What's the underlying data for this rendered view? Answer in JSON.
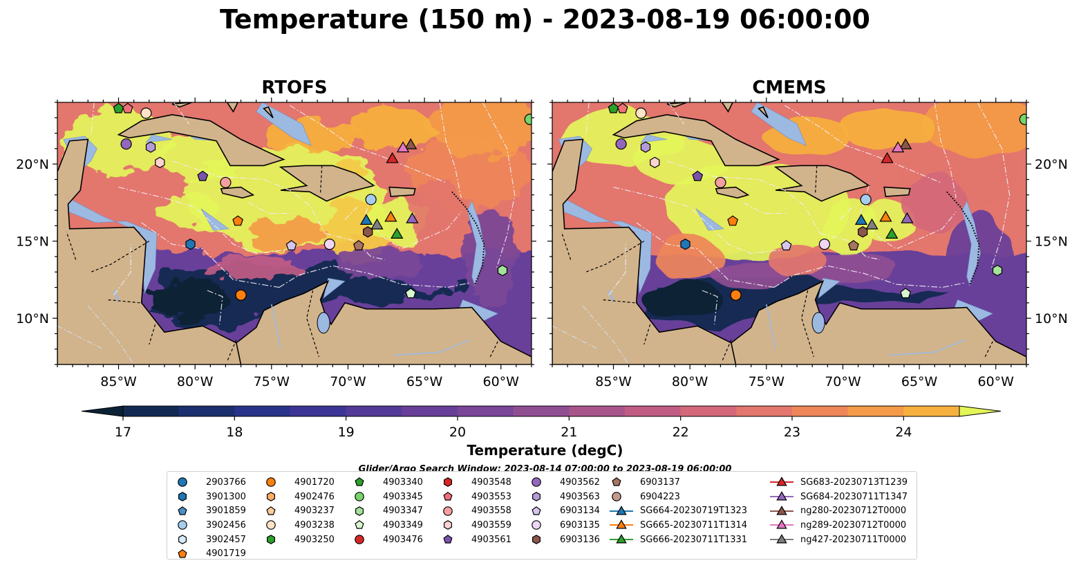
{
  "title": "Temperature (150 m) - 2023-08-19 06:00:00",
  "panels": [
    {
      "title": "RTOFS"
    },
    {
      "title": "CMEMS"
    }
  ],
  "chart_data": {
    "type": "heatmap",
    "x_axis": {
      "range": [
        -89,
        -58
      ],
      "ticks": [
        -85,
        -80,
        -75,
        -70,
        -65,
        -60
      ],
      "tick_labels": [
        "85°W",
        "80°W",
        "75°W",
        "70°W",
        "65°W",
        "60°W"
      ]
    },
    "y_axis": {
      "range": [
        7,
        24
      ],
      "ticks": [
        10,
        15,
        20
      ],
      "tick_labels": [
        "10°N",
        "15°N",
        "20°N"
      ]
    },
    "colorbar": {
      "label": "Temperature (degC)",
      "ticks": [
        17,
        18,
        19,
        20,
        21,
        22,
        23,
        24
      ],
      "levels": [
        17,
        17.5,
        18,
        18.5,
        19,
        19.5,
        20,
        20.5,
        21,
        21.5,
        22,
        22.5,
        23,
        23.5,
        24,
        24.5
      ],
      "colors": [
        "#0b2236",
        "#122a52",
        "#1b2f6e",
        "#29338a",
        "#3d3596",
        "#533a98",
        "#673f99",
        "#7a4697",
        "#904e92",
        "#a8558c",
        "#c15c84",
        "#d4687a",
        "#e3766d",
        "#ee8659",
        "#f49a48",
        "#f6b03e",
        "#f3c948",
        "#e4f55a"
      ],
      "extend": "both"
    },
    "search_window": "Glider/Argo Search Window: 2023-08-14 07:00:00 to 2023-08-19 06:00:00",
    "platforms": [
      {
        "id": "2903766",
        "marker": "circle",
        "color": "#1f77b4",
        "lon": null,
        "lat": null
      },
      {
        "id": "3901300",
        "marker": "hexagon",
        "color": "#1f77b4",
        "lon": -80.3,
        "lat": 14.8
      },
      {
        "id": "3901859",
        "marker": "pentagon",
        "color": "#4a90c6",
        "lon": null,
        "lat": null
      },
      {
        "id": "3902456",
        "marker": "circle",
        "color": "#a6cdee",
        "lon": -68.5,
        "lat": 17.7
      },
      {
        "id": "3902457",
        "marker": "hexagon",
        "color": "#d6ecf7",
        "lon": null,
        "lat": null
      },
      {
        "id": "4901719",
        "marker": "pentagon",
        "color": "#ff7f0e",
        "lon": -77.2,
        "lat": 16.3
      },
      {
        "id": "4901720",
        "marker": "circle",
        "color": "#ff7f0e",
        "lon": -77.0,
        "lat": 11.5
      },
      {
        "id": "4902476",
        "marker": "hexagon",
        "color": "#ffad66",
        "lon": null,
        "lat": null
      },
      {
        "id": "4903237",
        "marker": "pentagon",
        "color": "#ffcc99",
        "lon": null,
        "lat": null
      },
      {
        "id": "4903238",
        "marker": "circle",
        "color": "#ffe3c7",
        "lon": -83.2,
        "lat": 23.3
      },
      {
        "id": "4903250",
        "marker": "hexagon",
        "color": "#2ca02c",
        "lon": null,
        "lat": null
      },
      {
        "id": "4903340",
        "marker": "pentagon",
        "color": "#2ca02c",
        "lon": -85.0,
        "lat": 23.6
      },
      {
        "id": "4903345",
        "marker": "circle",
        "color": "#77d46b",
        "lon": -58.1,
        "lat": 22.9
      },
      {
        "id": "4903347",
        "marker": "hexagon",
        "color": "#a3e39a",
        "lon": -59.9,
        "lat": 13.1
      },
      {
        "id": "4903349",
        "marker": "pentagon",
        "color": "#d8f5cf",
        "lon": -65.9,
        "lat": 11.6
      },
      {
        "id": "4903476",
        "marker": "circle",
        "color": "#d62728",
        "lon": null,
        "lat": null
      },
      {
        "id": "4903548",
        "marker": "hexagon",
        "color": "#d62728",
        "lon": null,
        "lat": null
      },
      {
        "id": "4903553",
        "marker": "pentagon",
        "color": "#f0707a",
        "lon": -84.4,
        "lat": 23.6
      },
      {
        "id": "4903558",
        "marker": "circle",
        "color": "#f4a0a0",
        "lon": -78.0,
        "lat": 18.8
      },
      {
        "id": "4903559",
        "marker": "hexagon",
        "color": "#fcd3d0",
        "lon": -82.3,
        "lat": 20.1
      },
      {
        "id": "4903561",
        "marker": "pentagon",
        "color": "#7b52ab",
        "lon": -79.5,
        "lat": 19.2
      },
      {
        "id": "4903562",
        "marker": "circle",
        "color": "#9467bd",
        "lon": -84.5,
        "lat": 21.3
      },
      {
        "id": "4903563",
        "marker": "hexagon",
        "color": "#b49ad8",
        "lon": -82.9,
        "lat": 21.1
      },
      {
        "id": "6903134",
        "marker": "pentagon",
        "color": "#d5c6ee",
        "lon": -73.7,
        "lat": 14.7
      },
      {
        "id": "6903135",
        "marker": "circle",
        "color": "#efd6f5",
        "lon": -71.2,
        "lat": 14.8
      },
      {
        "id": "6903136",
        "marker": "hexagon",
        "color": "#8c564b",
        "lon": -68.7,
        "lat": 15.6
      },
      {
        "id": "6903137",
        "marker": "pentagon",
        "color": "#a87463",
        "lon": -69.3,
        "lat": 14.7
      },
      {
        "id": "6904223",
        "marker": "circle",
        "color": "#c49a8c",
        "lon": null,
        "lat": null
      },
      {
        "id": "SG664-20230719T1323",
        "marker": "triangle",
        "color": "#1f77b4",
        "lon": -68.8,
        "lat": 16.3
      },
      {
        "id": "SG665-20230711T1314",
        "marker": "triangle",
        "color": "#ff7f0e",
        "lon": -67.2,
        "lat": 16.5
      },
      {
        "id": "SG666-20230711T1331",
        "marker": "triangle",
        "color": "#2ca02c",
        "lon": -66.8,
        "lat": 15.4
      },
      {
        "id": "SG683-20230713T1239",
        "marker": "triangle",
        "color": "#d62728",
        "lon": -67.1,
        "lat": 20.3
      },
      {
        "id": "SG684-20230711T1347",
        "marker": "triangle",
        "color": "#9467bd",
        "lon": -65.8,
        "lat": 16.4
      },
      {
        "id": "ng280-20230712T0000",
        "marker": "triangle",
        "color": "#8c564b",
        "lon": -65.9,
        "lat": 21.2
      },
      {
        "id": "ng289-20230712T0000",
        "marker": "triangle",
        "color": "#e377c2",
        "lon": -66.4,
        "lat": 21.0
      },
      {
        "id": "ng427-20230711T0000",
        "marker": "triangle",
        "color": "#7f7f7f",
        "lon": -68.1,
        "lat": 16.0
      }
    ]
  }
}
